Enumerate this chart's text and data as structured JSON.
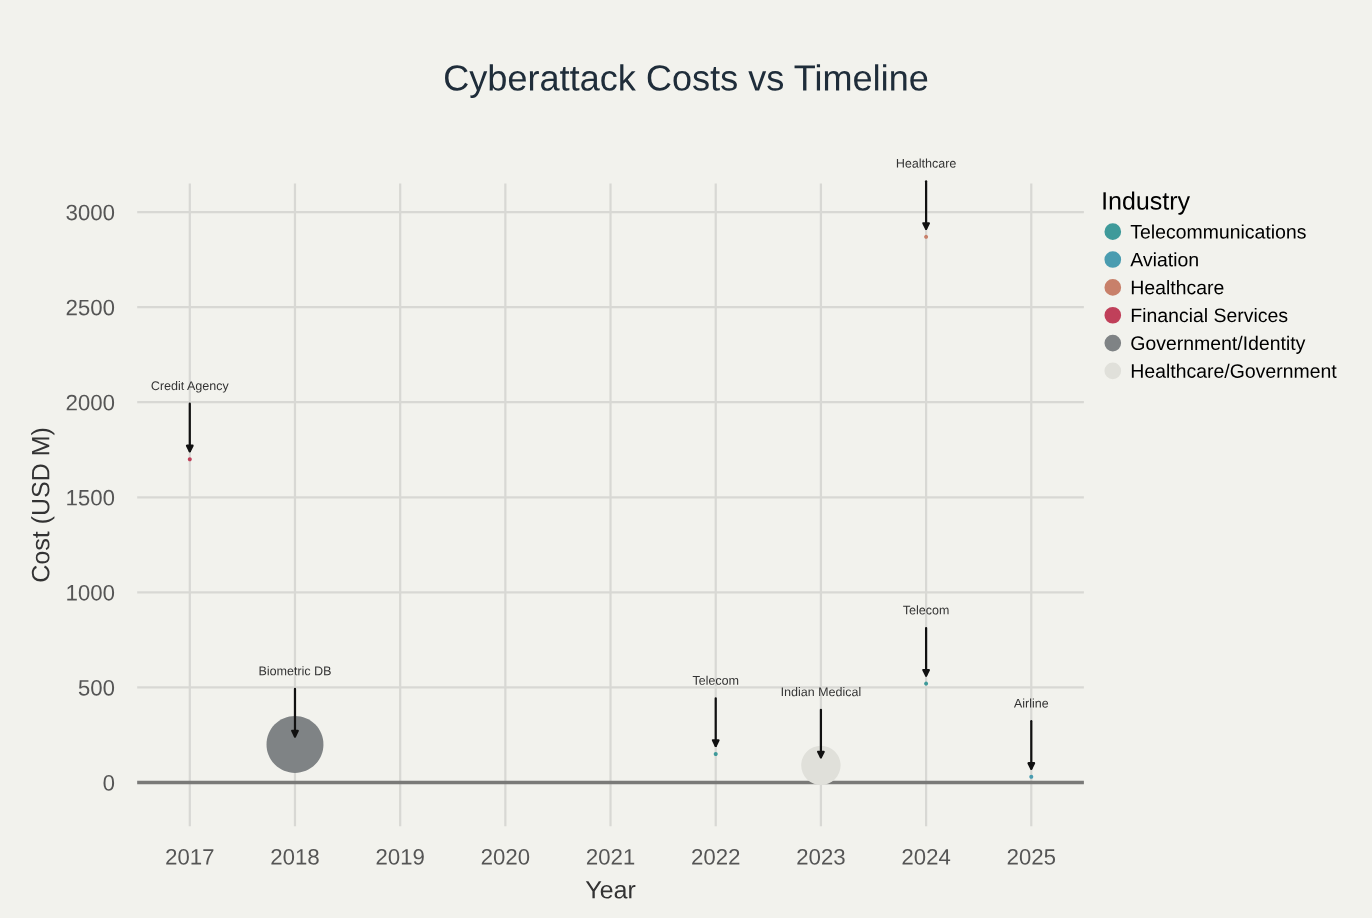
{
  "chart_data": {
    "type": "bubble",
    "title": "Cyberattack Costs vs Timeline",
    "xlabel": "Year",
    "ylabel": "Cost (USD M)",
    "legend_title": "Industry",
    "series": [
      {
        "name": "Telecommunications",
        "color": "#3f9a9a",
        "x": [
          2022,
          2024
        ],
        "values": [
          150,
          520
        ],
        "sizes": [
          0.005,
          0.005
        ]
      },
      {
        "name": "Aviation",
        "color": "#4a9cb0",
        "x": [
          2025
        ],
        "values": [
          30
        ],
        "sizes": [
          0.005
        ]
      },
      {
        "name": "Healthcare",
        "color": "#c8806a",
        "x": [
          2024
        ],
        "values": [
          2870
        ],
        "sizes": [
          0.005
        ]
      },
      {
        "name": "Financial Services",
        "color": "#c0405a",
        "x": [
          2017
        ],
        "values": [
          1700
        ],
        "sizes": [
          0.005
        ]
      },
      {
        "name": "Government/Identity",
        "color": "#7f8385",
        "x": [
          2018
        ],
        "values": [
          200
        ],
        "sizes": [
          1
        ]
      },
      {
        "name": "Healthcare/Government",
        "color": "#e0e0da",
        "x": [
          2023
        ],
        "values": [
          90
        ],
        "sizes": [
          0.48
        ]
      }
    ],
    "annotations": [
      {
        "text": "Credit Agency",
        "x": 2017,
        "y": 1700
      },
      {
        "text": "Biometric DB",
        "x": 2018,
        "y": 200
      },
      {
        "text": "Telecom",
        "x": 2022,
        "y": 150
      },
      {
        "text": "Indian Medical",
        "x": 2023,
        "y": 90
      },
      {
        "text": "Healthcare",
        "x": 2024,
        "y": 2870
      },
      {
        "text": "Telecom",
        "x": 2024,
        "y": 520
      },
      {
        "text": "Airline",
        "x": 2025,
        "y": 30
      }
    ],
    "ref_lines": [
      {
        "axis": "y",
        "value": 0,
        "color": "#7a7a78"
      }
    ],
    "xlim": [
      2016.5,
      2025.5
    ],
    "xticks": [
      2017,
      2018,
      2019,
      2020,
      2021,
      2022,
      2023,
      2024,
      2025
    ],
    "ylim": [
      -230,
      3150
    ],
    "yticks": [
      0,
      500,
      1000,
      1500,
      2000,
      2500,
      3000
    ],
    "grid": true,
    "legend": "right"
  }
}
